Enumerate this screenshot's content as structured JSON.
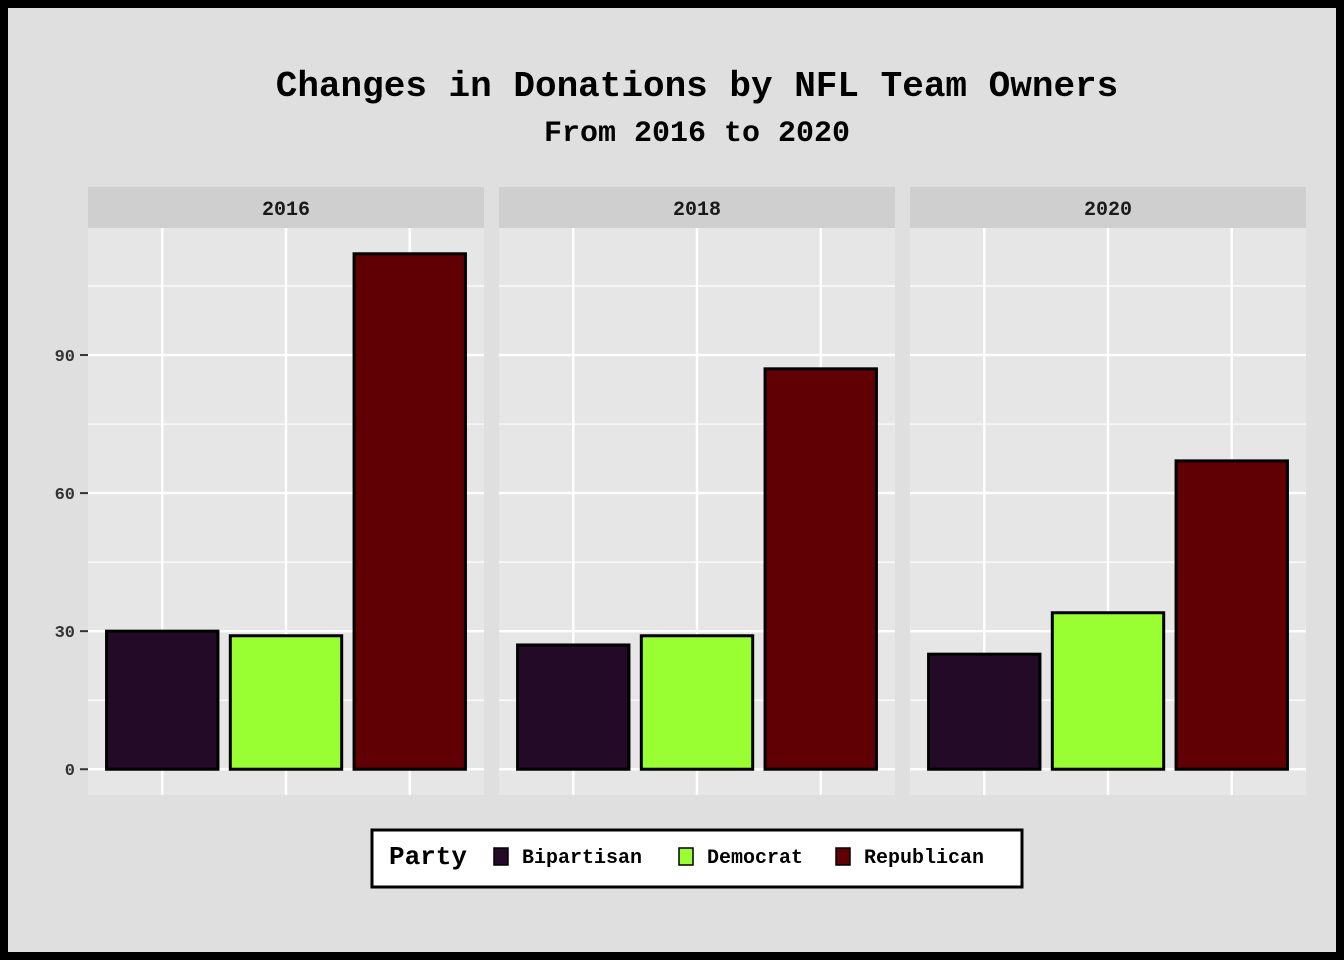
{
  "chart_data": {
    "type": "bar",
    "title": "Changes in Donations by NFL Team Owners",
    "subtitle": "From 2016 to 2020",
    "facets": [
      "2016",
      "2018",
      "2020"
    ],
    "categories": [
      "Bipartisan",
      "Democrat",
      "Republican"
    ],
    "series": [
      {
        "facet": "2016",
        "values": [
          30,
          29,
          112
        ]
      },
      {
        "facet": "2018",
        "values": [
          27,
          29,
          87
        ]
      },
      {
        "facet": "2020",
        "values": [
          25,
          34,
          67
        ]
      }
    ],
    "colors": {
      "Bipartisan": "#230b27",
      "Democrat": "#99ff33",
      "Republican": "#600005"
    },
    "yticks": [
      0,
      30,
      60,
      90
    ],
    "ylim": [
      -5.6,
      117.6
    ],
    "grid": true,
    "legend": {
      "title": "Party",
      "placement": "bottom"
    }
  }
}
